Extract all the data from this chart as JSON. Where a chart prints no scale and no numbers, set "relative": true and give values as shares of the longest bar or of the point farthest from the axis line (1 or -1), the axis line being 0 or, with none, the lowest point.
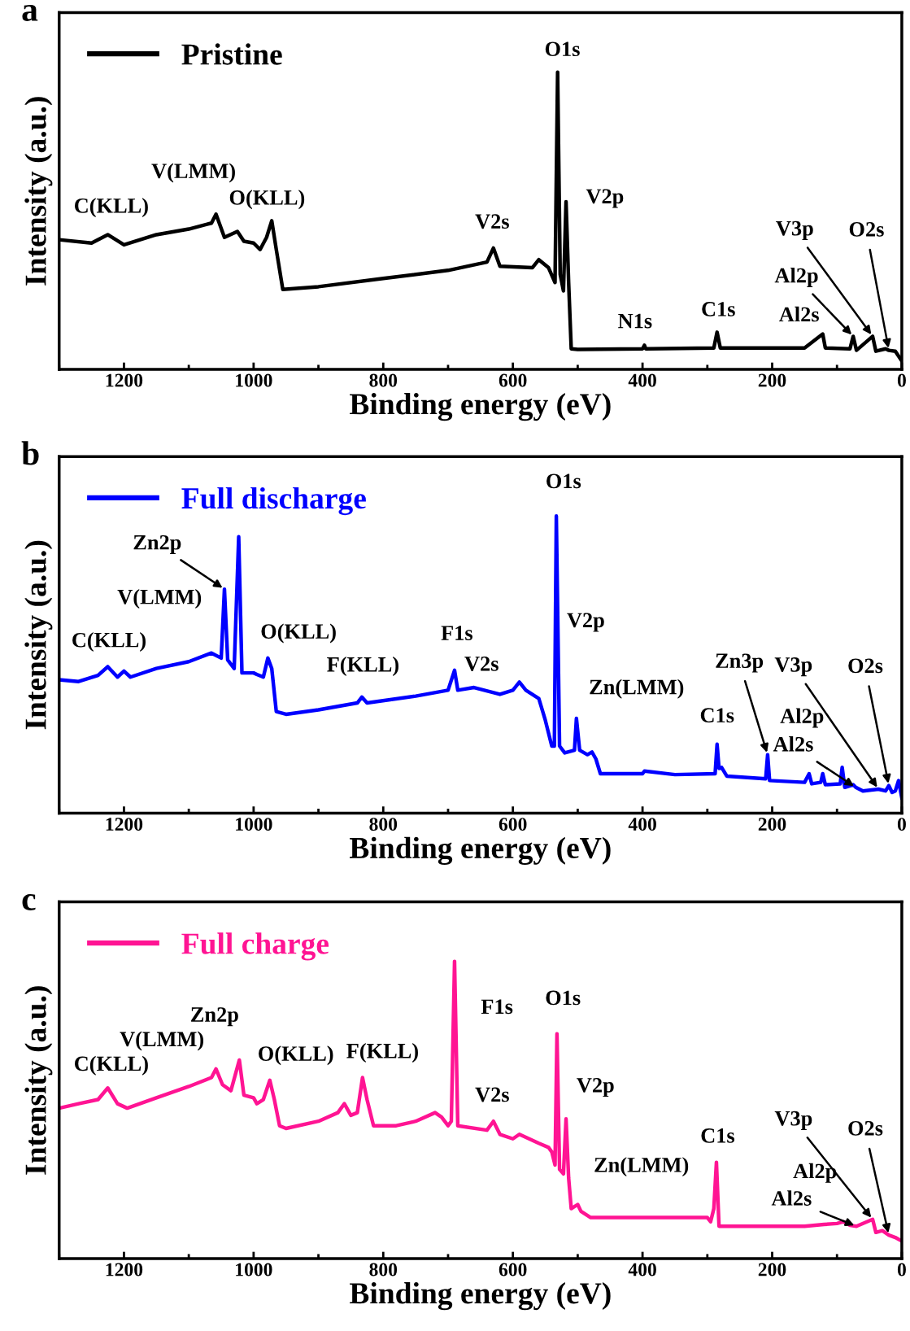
{
  "chart_data": [
    {
      "type": "line",
      "title": "a",
      "relative": true,
      "xlabel": "Binding energy (eV)",
      "ylabel": "Intensity (a.u.)",
      "xlim": [
        1300,
        0
      ],
      "xticks": [
        1200,
        1000,
        800,
        600,
        400,
        200,
        0
      ],
      "legend": "top left",
      "grid": false,
      "series": [
        {
          "name": "Pristine",
          "color": "#000000",
          "x": [
            1300,
            1250,
            1225,
            1200,
            1150,
            1100,
            1065,
            1058,
            1045,
            1025,
            1015,
            1000,
            990,
            980,
            972,
            965,
            955,
            900,
            800,
            700,
            640,
            630,
            620,
            570,
            560,
            545,
            535,
            531,
            527,
            522,
            518,
            514,
            510,
            500,
            400,
            397,
            395,
            290,
            285,
            280,
            150,
            122,
            118,
            80,
            75,
            70,
            45,
            40,
            25,
            20,
            10,
            0
          ],
          "values": [
            0.436,
            0.425,
            0.453,
            0.419,
            0.453,
            0.472,
            0.492,
            0.522,
            0.444,
            0.464,
            0.431,
            0.425,
            0.403,
            0.444,
            0.5,
            0.403,
            0.269,
            0.278,
            0.306,
            0.333,
            0.361,
            0.408,
            0.347,
            0.342,
            0.369,
            0.342,
            0.292,
            1.0,
            0.319,
            0.264,
            0.564,
            0.292,
            0.069,
            0.067,
            0.069,
            0.081,
            0.069,
            0.072,
            0.125,
            0.072,
            0.072,
            0.119,
            0.072,
            0.069,
            0.111,
            0.064,
            0.111,
            0.061,
            0.069,
            0.064,
            0.061,
            0.028
          ]
        }
      ],
      "annotations": [
        {
          "text": "C(KLL)",
          "x": 1225,
          "y": 0.453
        },
        {
          "text": "V(LMM)",
          "x": 1058,
          "y": 0.522
        },
        {
          "text": "O(KLL)",
          "x": 972,
          "y": 0.5
        },
        {
          "text": "V2s",
          "x": 630,
          "y": 0.408
        },
        {
          "text": "O1s",
          "x": 531,
          "y": 1.0
        },
        {
          "text": "V2p",
          "x": 518,
          "y": 0.564
        },
        {
          "text": "N1s",
          "x": 397,
          "y": 0.081
        },
        {
          "text": "C1s",
          "x": 285,
          "y": 0.125
        },
        {
          "text": "Al2s",
          "x": 122,
          "y": 0.119
        },
        {
          "text": "Al2p",
          "x": 75,
          "y": 0.111
        },
        {
          "text": "V3p",
          "x": 45,
          "y": 0.111
        },
        {
          "text": "O2s",
          "x": 20,
          "y": 0.064
        }
      ]
    },
    {
      "type": "line",
      "title": "b",
      "relative": true,
      "xlabel": "Binding energy (eV)",
      "ylabel": "Intensity (a.u.)",
      "xlim": [
        1300,
        0
      ],
      "xticks": [
        1200,
        1000,
        800,
        600,
        400,
        200,
        0
      ],
      "legend": "top left",
      "grid": false,
      "series": [
        {
          "name": "Full discharge",
          "color": "#0000ff",
          "x": [
            1300,
            1270,
            1240,
            1225,
            1210,
            1200,
            1190,
            1150,
            1100,
            1065,
            1050,
            1045,
            1040,
            1030,
            1023,
            1018,
            1000,
            995,
            985,
            978,
            972,
            965,
            950,
            900,
            840,
            833,
            825,
            750,
            700,
            690,
            685,
            660,
            620,
            600,
            590,
            580,
            560,
            550,
            540,
            536,
            533,
            528,
            520,
            505,
            502,
            497,
            485,
            478,
            472,
            465,
            400,
            397,
            350,
            288,
            285,
            282,
            278,
            270,
            210,
            207,
            204,
            150,
            143,
            139,
            125,
            122,
            118,
            95,
            92,
            88,
            75,
            71,
            60,
            36,
            25,
            20,
            15,
            10,
            5,
            0
          ],
          "values": [
            0.449,
            0.443,
            0.464,
            0.493,
            0.458,
            0.478,
            0.458,
            0.487,
            0.51,
            0.539,
            0.522,
            0.754,
            0.516,
            0.487,
            0.93,
            0.472,
            0.472,
            0.467,
            0.458,
            0.522,
            0.487,
            0.342,
            0.333,
            0.348,
            0.371,
            0.391,
            0.371,
            0.394,
            0.414,
            0.481,
            0.414,
            0.423,
            0.4,
            0.414,
            0.441,
            0.414,
            0.386,
            0.313,
            0.226,
            0.226,
            1.0,
            0.226,
            0.203,
            0.212,
            0.319,
            0.212,
            0.197,
            0.206,
            0.183,
            0.133,
            0.133,
            0.142,
            0.13,
            0.133,
            0.232,
            0.151,
            0.154,
            0.125,
            0.116,
            0.197,
            0.11,
            0.104,
            0.133,
            0.099,
            0.104,
            0.133,
            0.096,
            0.099,
            0.154,
            0.087,
            0.096,
            0.087,
            0.075,
            0.081,
            0.075,
            0.093,
            0.07,
            0.075,
            0.11,
            0.052
          ]
        }
      ],
      "annotations": [
        {
          "text": "C(KLL)",
          "x": 1225,
          "y": 0.493
        },
        {
          "text": "V(LMM)",
          "x": 1065,
          "y": 0.539
        },
        {
          "text": "Zn2p",
          "x": 1045,
          "y": 0.754
        },
        {
          "text": "O(KLL)",
          "x": 978,
          "y": 0.522
        },
        {
          "text": "F(KLL)",
          "x": 833,
          "y": 0.391
        },
        {
          "text": "F1s",
          "x": 690,
          "y": 0.481
        },
        {
          "text": "V2s",
          "x": 590,
          "y": 0.441
        },
        {
          "text": "O1s",
          "x": 533,
          "y": 1.0
        },
        "V2p",
        {
          "text": "Zn(LMM)",
          "x": 502,
          "y": 0.319
        },
        {
          "text": "C1s",
          "x": 285,
          "y": 0.232
        },
        {
          "text": "Zn3p",
          "x": 207,
          "y": 0.197
        },
        {
          "text": "Al2p",
          "x": 92,
          "y": 0.154
        },
        {
          "text": "Al2s",
          "x": 71,
          "y": 0.087
        },
        {
          "text": "V3p",
          "x": 36,
          "y": 0.081
        },
        {
          "text": "O2s",
          "x": 20,
          "y": 0.093
        }
      ]
    },
    {
      "type": "line",
      "title": "c",
      "relative": true,
      "xlabel": "Binding energy (eV)",
      "ylabel": "Intensity (a.u.)",
      "xlim": [
        1300,
        0
      ],
      "xticks": [
        1200,
        1000,
        800,
        600,
        400,
        200,
        0
      ],
      "legend": "top left",
      "grid": false,
      "series": [
        {
          "name": "Full charge",
          "color": "#ff1493",
          "x": [
            1300,
            1270,
            1240,
            1225,
            1210,
            1195,
            1150,
            1100,
            1065,
            1058,
            1048,
            1035,
            1022,
            1015,
            1000,
            995,
            985,
            975,
            968,
            960,
            950,
            900,
            870,
            860,
            850,
            840,
            832,
            825,
            815,
            780,
            750,
            720,
            710,
            700,
            695,
            690,
            685,
            640,
            630,
            620,
            600,
            590,
            560,
            545,
            540,
            535,
            532,
            528,
            522,
            518,
            514,
            510,
            500,
            495,
            480,
            400,
            300,
            295,
            290,
            286,
            282,
            250,
            150,
            120,
            100,
            90,
            80,
            70,
            45,
            40,
            30,
            20,
            10,
            0
          ],
          "values": [
            0.506,
            0.521,
            0.535,
            0.574,
            0.521,
            0.506,
            0.541,
            0.579,
            0.609,
            0.638,
            0.585,
            0.565,
            0.668,
            0.55,
            0.541,
            0.521,
            0.535,
            0.6,
            0.535,
            0.447,
            0.438,
            0.462,
            0.491,
            0.521,
            0.482,
            0.491,
            0.609,
            0.535,
            0.447,
            0.447,
            0.462,
            0.491,
            0.476,
            0.447,
            0.462,
            1.0,
            0.447,
            0.432,
            0.462,
            0.418,
            0.403,
            0.418,
            0.388,
            0.374,
            0.359,
            0.315,
            0.756,
            0.3,
            0.285,
            0.47,
            0.271,
            0.168,
            0.182,
            0.159,
            0.138,
            0.138,
            0.138,
            0.124,
            0.168,
            0.324,
            0.109,
            0.109,
            0.109,
            0.115,
            0.118,
            0.124,
            0.112,
            0.109,
            0.132,
            0.088,
            0.094,
            0.079,
            0.071,
            0.059
          ]
        }
      ],
      "annotations": [
        {
          "text": "C(KLL)",
          "x": 1225,
          "y": 0.574
        },
        {
          "text": "V(LMM)",
          "x": 1065,
          "y": 0.609
        },
        {
          "text": "Zn2p",
          "x": 1022,
          "y": 0.668
        },
        {
          "text": "O(KLL)",
          "x": 975,
          "y": 0.6
        },
        {
          "text": "F(KLL)",
          "x": 832,
          "y": 0.609
        },
        {
          "text": "F1s",
          "x": 690,
          "y": 1.0
        },
        {
          "text": "V2s",
          "x": 630,
          "y": 0.462
        },
        {
          "text": "O1s",
          "x": 532,
          "y": 0.756
        },
        {
          "text": "V2p",
          "x": 518,
          "y": 0.47
        },
        {
          "text": "Zn(LMM)",
          "x": 500,
          "y": 0.182
        },
        {
          "text": "C1s",
          "x": 286,
          "y": 0.324
        },
        "Al2p",
        {
          "text": "Al2s",
          "x": 70,
          "y": 0.109
        },
        {
          "text": "V3p",
          "x": 45,
          "y": 0.132
        },
        {
          "text": "O2s",
          "x": 20,
          "y": 0.079
        }
      ]
    }
  ]
}
